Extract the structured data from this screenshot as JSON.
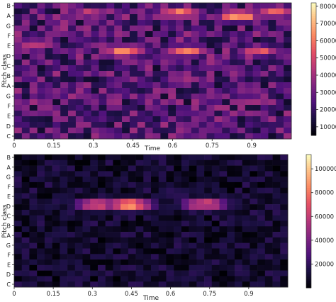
{
  "chart_data": [
    {
      "type": "heatmap",
      "xlabel": "Time",
      "ylabel": "Pitch class",
      "x_ticks": [
        "0",
        "0.15",
        "0.3",
        "0.45",
        "0.6",
        "0.75",
        "0.9"
      ],
      "x_tick_values": [
        0,
        0.15,
        0.3,
        0.45,
        0.6,
        0.75,
        0.9
      ],
      "xlim": [
        0,
        1.05
      ],
      "y_tick_labels": [
        "B",
        "A",
        "G",
        "F",
        "E",
        "D",
        "C",
        "B",
        "A",
        "G",
        "F",
        "E",
        "D",
        "C"
      ],
      "colorbar": {
        "colormap": "magma",
        "range": [
          5000,
          82000
        ],
        "ticks": [
          "10000",
          "20000",
          "30000",
          "40000",
          "50000",
          "60000",
          "70000",
          "80000"
        ],
        "tick_values": [
          10000,
          20000,
          30000,
          40000,
          50000,
          60000,
          70000,
          80000
        ]
      },
      "rows_top_to_bottom": 24,
      "cols": 36,
      "peaks": [
        {
          "time": 0.29,
          "row": 1.2,
          "value": 52000
        },
        {
          "time": 0.63,
          "row": 1.2,
          "value": 70000
        },
        {
          "time": 0.85,
          "row": 1.8,
          "value": 76000
        },
        {
          "time": 0.99,
          "row": 1.0,
          "value": 60000
        },
        {
          "time": 0.08,
          "row": 6.8,
          "value": 55000
        },
        {
          "time": 0.42,
          "row": 8.0,
          "value": 72000
        },
        {
          "time": 0.65,
          "row": 8.0,
          "value": 68000
        },
        {
          "time": 0.93,
          "row": 8.0,
          "value": 58000
        },
        {
          "time": 0.15,
          "row": 15.5,
          "value": 40000
        }
      ]
    },
    {
      "type": "heatmap",
      "xlabel": "Time",
      "ylabel": "Pitch class",
      "x_ticks": [
        "0",
        "0.15",
        "0.3",
        "0.45",
        "0.6",
        "0.75",
        "0.9"
      ],
      "x_tick_values": [
        0,
        0.15,
        0.3,
        0.45,
        0.6,
        0.75,
        0.9
      ],
      "xlim": [
        0,
        1.05
      ],
      "y_tick_labels": [
        "B",
        "A",
        "G",
        "F",
        "E",
        "D",
        "C",
        "B",
        "A",
        "G",
        "F",
        "E",
        "D",
        "C"
      ],
      "colorbar": {
        "colormap": "magma",
        "range": [
          0,
          112000
        ],
        "ticks": [
          "20000",
          "40000",
          "60000",
          "80000",
          "100000"
        ],
        "tick_values": [
          20000,
          40000,
          60000,
          80000,
          100000
        ]
      },
      "rows_top_to_bottom": 24,
      "cols": 36,
      "peaks": [
        {
          "time": 0.32,
          "row": 8.6,
          "value": 80000
        },
        {
          "time": 0.44,
          "row": 8.6,
          "value": 108000
        },
        {
          "time": 0.73,
          "row": 8.5,
          "value": 82000
        }
      ]
    }
  ]
}
